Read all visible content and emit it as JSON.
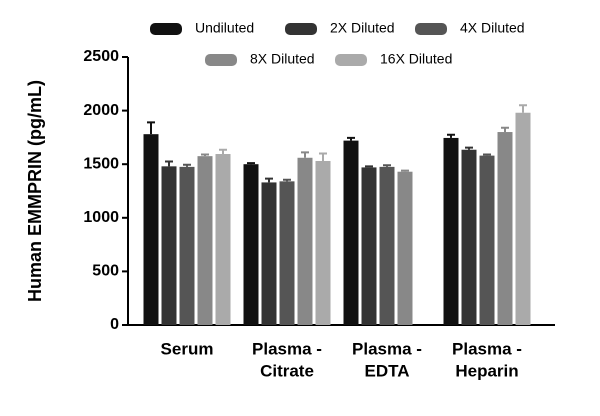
{
  "chart_data": {
    "type": "bar",
    "y_label": "Human EMMPRIN (pg/mL)",
    "categories": [
      [
        "Serum"
      ],
      [
        "Plasma -",
        "Citrate"
      ],
      [
        "Plasma -",
        "EDTA"
      ],
      [
        "Plasma -",
        "Heparin"
      ]
    ],
    "series": [
      {
        "name": "Undiluted",
        "color": "#111111",
        "values": [
          1780,
          1500,
          1720,
          1745
        ],
        "errors": [
          110,
          10,
          25,
          30
        ]
      },
      {
        "name": "2X Diluted",
        "color": "#333333",
        "values": [
          1480,
          1330,
          1470,
          1635
        ],
        "errors": [
          45,
          35,
          10,
          20
        ]
      },
      {
        "name": "4X Diluted",
        "color": "#555555",
        "values": [
          1475,
          1340,
          1475,
          1580
        ],
        "errors": [
          20,
          15,
          15,
          10
        ]
      },
      {
        "name": "8X Diluted",
        "color": "#888888",
        "values": [
          1575,
          1560,
          1430,
          1800
        ],
        "errors": [
          15,
          50,
          10,
          40
        ]
      },
      {
        "name": "16X Diluted",
        "color": "#aaaaaa",
        "values": [
          1595,
          1530,
          null,
          1980
        ],
        "errors": [
          40,
          70,
          null,
          70
        ]
      }
    ],
    "ylim": [
      0,
      2500
    ],
    "yticks": [
      0,
      500,
      1000,
      1500,
      2000,
      2500
    ]
  }
}
